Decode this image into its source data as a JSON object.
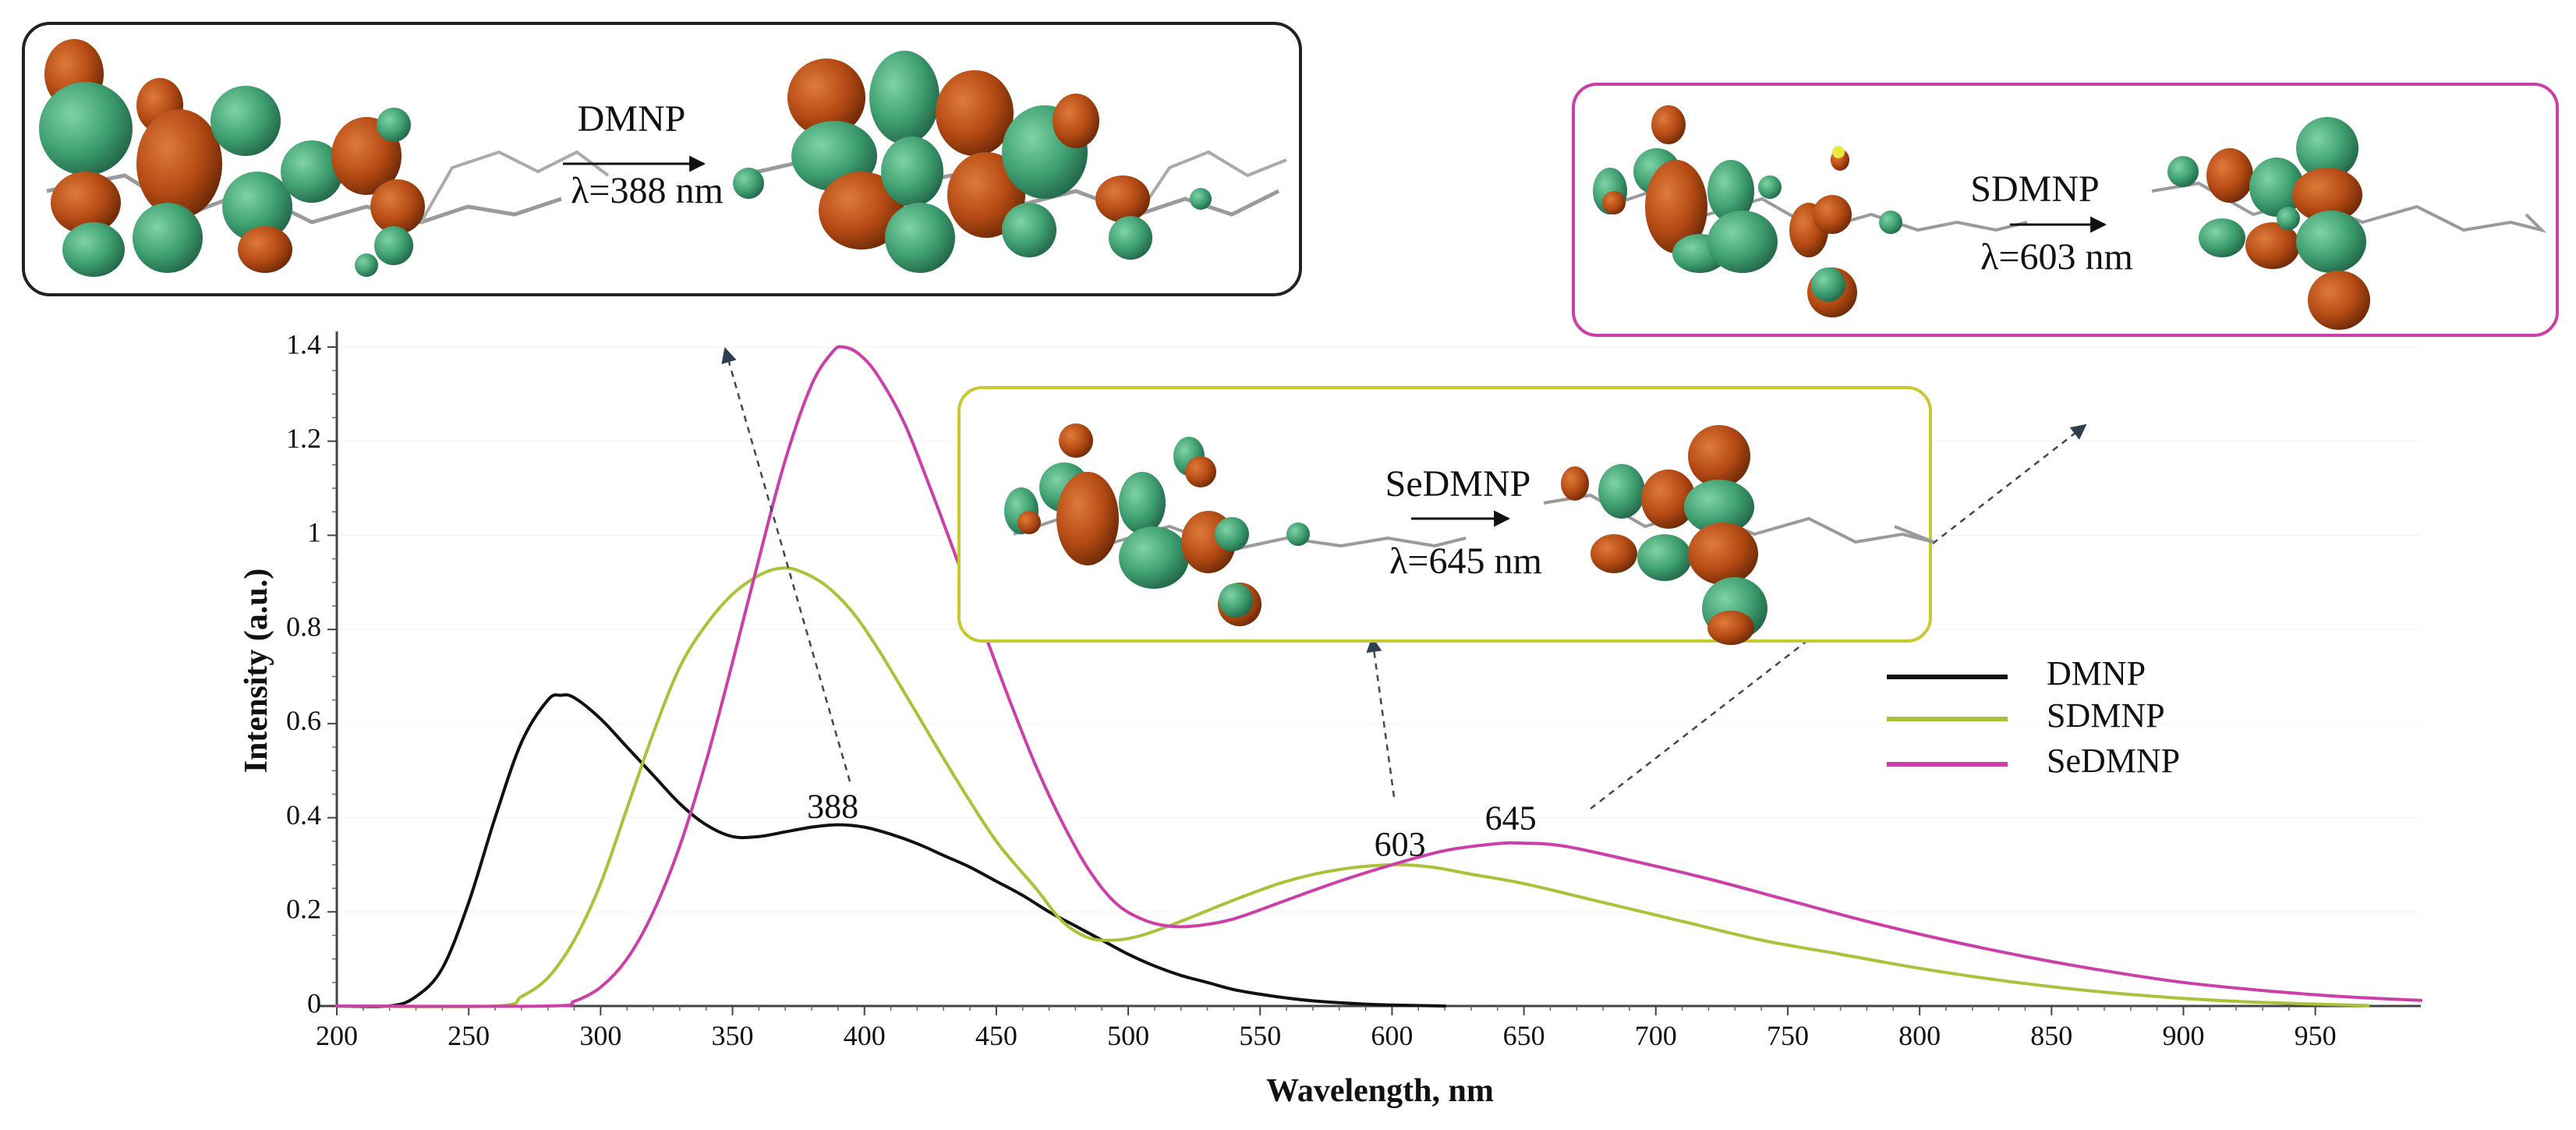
{
  "chart_data": {
    "type": "line",
    "xlabel": "Wavelength, nm",
    "ylabel": "Intensity (a.u.)",
    "xlim": [
      200,
      990
    ],
    "ylim": [
      0,
      1.4
    ],
    "x_ticks": [
      "200",
      "250",
      "300",
      "350",
      "400",
      "450",
      "500",
      "550",
      "600",
      "650",
      "700",
      "750",
      "800",
      "850",
      "900",
      "950"
    ],
    "y_ticks": [
      "0",
      "0.2",
      "0.4",
      "0.6",
      "0.8",
      "1",
      "1.2",
      "1.4"
    ],
    "series": [
      {
        "name": "DMNP",
        "color": "#111111",
        "points": [
          [
            200,
            0
          ],
          [
            220,
            0
          ],
          [
            230,
            0.02
          ],
          [
            240,
            0.08
          ],
          [
            250,
            0.22
          ],
          [
            260,
            0.4
          ],
          [
            270,
            0.56
          ],
          [
            280,
            0.65
          ],
          [
            285,
            0.66
          ],
          [
            290,
            0.655
          ],
          [
            300,
            0.61
          ],
          [
            310,
            0.55
          ],
          [
            320,
            0.49
          ],
          [
            330,
            0.43
          ],
          [
            340,
            0.385
          ],
          [
            350,
            0.36
          ],
          [
            360,
            0.36
          ],
          [
            370,
            0.37
          ],
          [
            380,
            0.38
          ],
          [
            390,
            0.385
          ],
          [
            400,
            0.38
          ],
          [
            410,
            0.365
          ],
          [
            420,
            0.345
          ],
          [
            430,
            0.32
          ],
          [
            440,
            0.295
          ],
          [
            450,
            0.265
          ],
          [
            460,
            0.235
          ],
          [
            470,
            0.2
          ],
          [
            480,
            0.17
          ],
          [
            490,
            0.14
          ],
          [
            500,
            0.11
          ],
          [
            510,
            0.085
          ],
          [
            520,
            0.065
          ],
          [
            530,
            0.05
          ],
          [
            540,
            0.035
          ],
          [
            550,
            0.025
          ],
          [
            560,
            0.017
          ],
          [
            570,
            0.011
          ],
          [
            580,
            0.007
          ],
          [
            590,
            0.004
          ],
          [
            600,
            0.002
          ],
          [
            620,
            0
          ]
        ]
      },
      {
        "name": "SDMNP",
        "color": "#a8c23a",
        "points": [
          [
            200,
            0
          ],
          [
            260,
            0
          ],
          [
            270,
            0.02
          ],
          [
            280,
            0.06
          ],
          [
            290,
            0.14
          ],
          [
            300,
            0.26
          ],
          [
            310,
            0.42
          ],
          [
            320,
            0.58
          ],
          [
            330,
            0.72
          ],
          [
            340,
            0.81
          ],
          [
            350,
            0.875
          ],
          [
            360,
            0.915
          ],
          [
            368,
            0.93
          ],
          [
            375,
            0.925
          ],
          [
            385,
            0.895
          ],
          [
            395,
            0.84
          ],
          [
            405,
            0.76
          ],
          [
            420,
            0.62
          ],
          [
            435,
            0.48
          ],
          [
            450,
            0.35
          ],
          [
            465,
            0.25
          ],
          [
            475,
            0.18
          ],
          [
            485,
            0.145
          ],
          [
            495,
            0.14
          ],
          [
            505,
            0.15
          ],
          [
            520,
            0.18
          ],
          [
            540,
            0.225
          ],
          [
            560,
            0.265
          ],
          [
            580,
            0.29
          ],
          [
            600,
            0.3
          ],
          [
            615,
            0.295
          ],
          [
            630,
            0.28
          ],
          [
            650,
            0.26
          ],
          [
            680,
            0.22
          ],
          [
            710,
            0.18
          ],
          [
            740,
            0.14
          ],
          [
            770,
            0.11
          ],
          [
            800,
            0.08
          ],
          [
            830,
            0.055
          ],
          [
            860,
            0.035
          ],
          [
            890,
            0.02
          ],
          [
            920,
            0.01
          ],
          [
            950,
            0.004
          ],
          [
            970,
            0.001
          ]
        ]
      },
      {
        "name": "SeDMNP",
        "color": "#cc3fa8",
        "points": [
          [
            200,
            0
          ],
          [
            280,
            0
          ],
          [
            290,
            0.01
          ],
          [
            300,
            0.04
          ],
          [
            310,
            0.1
          ],
          [
            320,
            0.2
          ],
          [
            330,
            0.34
          ],
          [
            340,
            0.52
          ],
          [
            350,
            0.73
          ],
          [
            360,
            0.95
          ],
          [
            370,
            1.16
          ],
          [
            380,
            1.32
          ],
          [
            388,
            1.39
          ],
          [
            392,
            1.4
          ],
          [
            398,
            1.385
          ],
          [
            405,
            1.34
          ],
          [
            415,
            1.24
          ],
          [
            425,
            1.1
          ],
          [
            435,
            0.95
          ],
          [
            445,
            0.8
          ],
          [
            455,
            0.65
          ],
          [
            465,
            0.51
          ],
          [
            475,
            0.39
          ],
          [
            485,
            0.29
          ],
          [
            495,
            0.22
          ],
          [
            505,
            0.185
          ],
          [
            515,
            0.17
          ],
          [
            525,
            0.17
          ],
          [
            540,
            0.185
          ],
          [
            560,
            0.225
          ],
          [
            580,
            0.265
          ],
          [
            600,
            0.3
          ],
          [
            620,
            0.33
          ],
          [
            640,
            0.345
          ],
          [
            650,
            0.346
          ],
          [
            665,
            0.34
          ],
          [
            690,
            0.31
          ],
          [
            720,
            0.27
          ],
          [
            750,
            0.225
          ],
          [
            780,
            0.18
          ],
          [
            810,
            0.14
          ],
          [
            840,
            0.105
          ],
          [
            870,
            0.075
          ],
          [
            900,
            0.05
          ],
          [
            930,
            0.033
          ],
          [
            960,
            0.02
          ],
          [
            990,
            0.012
          ]
        ]
      }
    ],
    "peak_labels": [
      {
        "text": "388",
        "x": 388,
        "y": 0.4
      },
      {
        "text": "603",
        "x": 603,
        "y": 0.32
      },
      {
        "text": "645",
        "x": 645,
        "y": 0.375
      }
    ],
    "legend": {
      "position": "right",
      "entries": [
        "DMNP",
        "SDMNP",
        "SeDMNP"
      ]
    }
  },
  "insets": {
    "dmnp": {
      "name": "DMNP",
      "transition": "λ=388 nm",
      "border_color": "#222222"
    },
    "sdmnp": {
      "name": "SDMNP",
      "transition": "λ=603 nm",
      "border_color": "#cc3fa8"
    },
    "sedmnp": {
      "name": "SeDMNP",
      "transition": "λ=645 nm",
      "border_color": "#c8c830"
    }
  },
  "orbital_colors": {
    "positive": "#3e9e6f",
    "negative": "#b34a14",
    "bond": "#9a9a9a"
  }
}
